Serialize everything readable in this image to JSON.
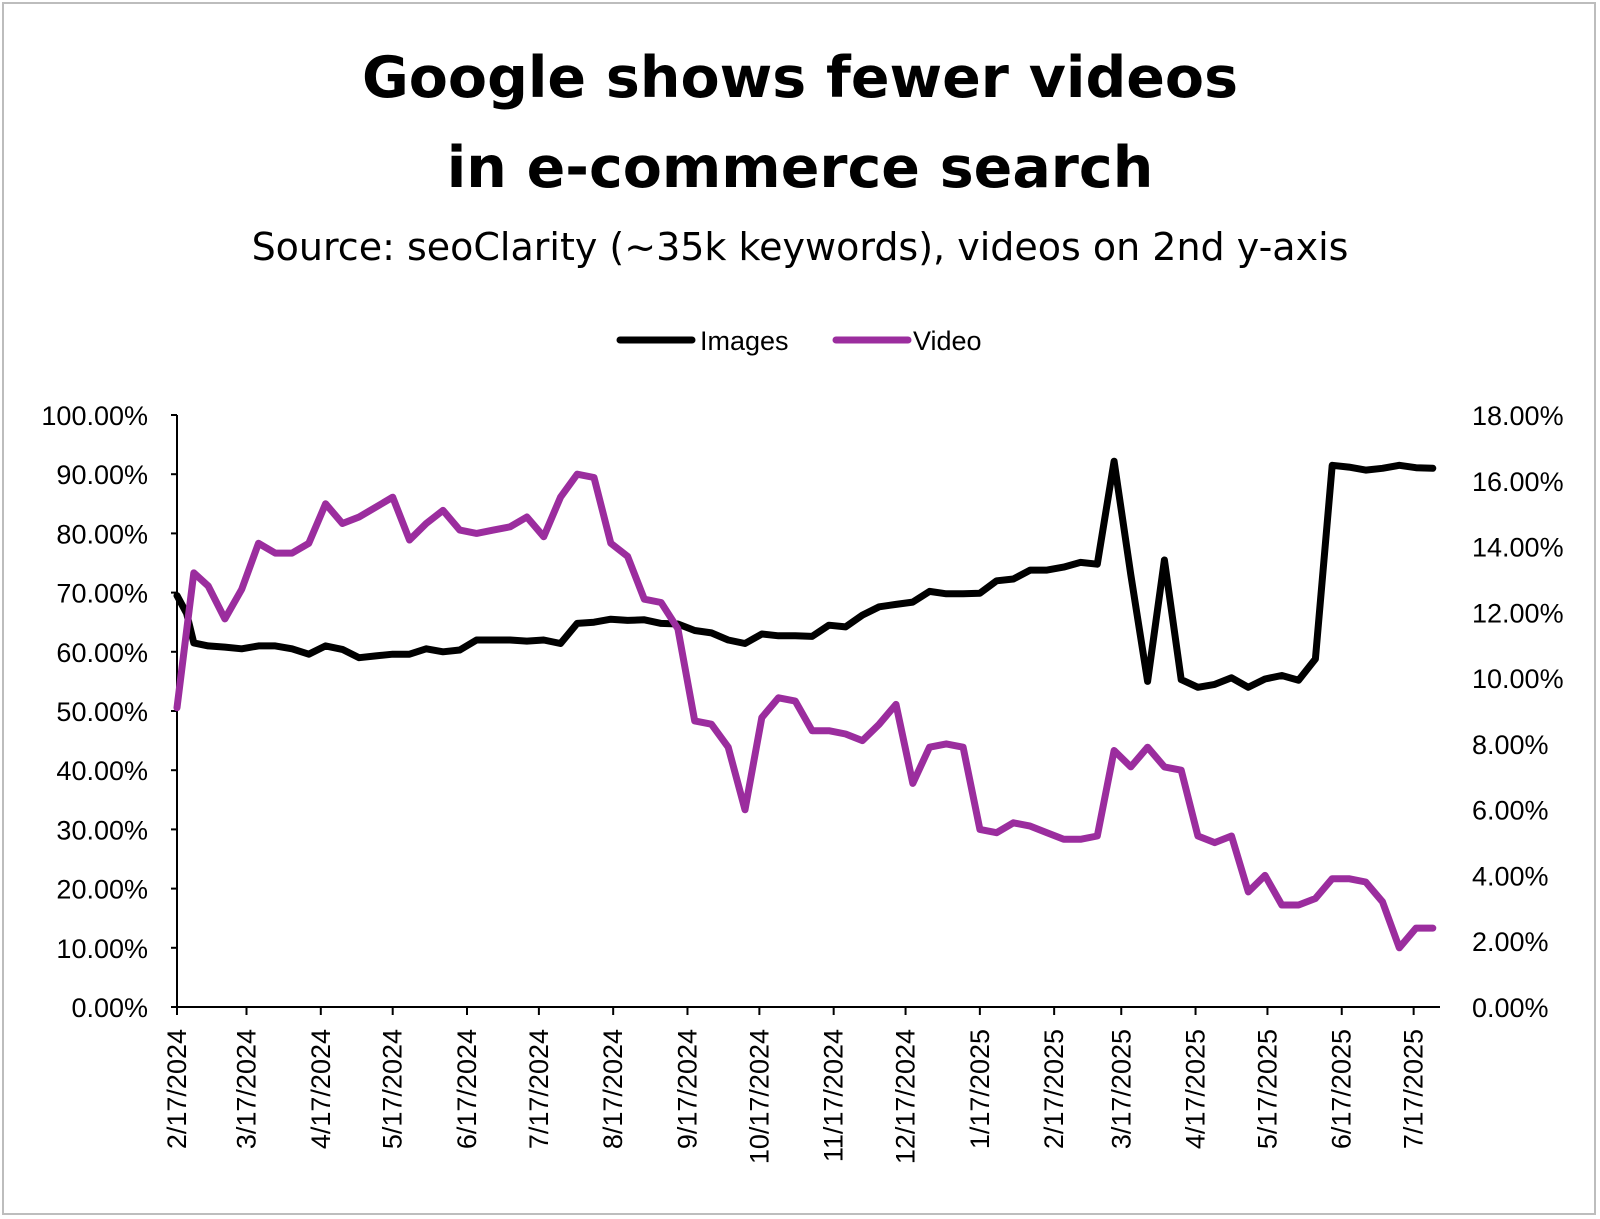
{
  "chart_data": {
    "type": "line",
    "title_line1": "Google shows fewer videos",
    "title_line2": "in e-commerce search",
    "subtitle": "Source: seoClarity (~35k keywords), videos on 2nd y-axis",
    "xlabel": "",
    "ylabel": "",
    "ylim": [
      0,
      1.0
    ],
    "y2lim": [
      0,
      0.18
    ],
    "y_ticks": [
      "0.00%",
      "10.00%",
      "20.00%",
      "30.00%",
      "40.00%",
      "50.00%",
      "60.00%",
      "70.00%",
      "80.00%",
      "90.00%",
      "100.00%"
    ],
    "y2_ticks": [
      "0.00%",
      "2.00%",
      "4.00%",
      "6.00%",
      "8.00%",
      "10.00%",
      "12.00%",
      "14.00%",
      "16.00%",
      "18.00%"
    ],
    "x_ticks": [
      "2/17/2024",
      "3/17/2024",
      "4/17/2024",
      "5/17/2024",
      "6/17/2024",
      "7/17/2024",
      "8/17/2024",
      "9/17/2024",
      "10/17/2024",
      "11/17/2024",
      "12/17/2024",
      "1/17/2025",
      "2/17/2025",
      "3/17/2025",
      "4/17/2025",
      "5/17/2025",
      "6/17/2025",
      "7/17/2025"
    ],
    "x_range": [
      "2024-02-17",
      "2025-07-28"
    ],
    "legend_position": "top-center",
    "grid": false,
    "series": [
      {
        "name": "Images",
        "axis": "left",
        "color": "#000000",
        "points": [
          [
            "2024-02-17",
            0.695
          ],
          [
            "2024-02-21",
            0.665
          ],
          [
            "2024-02-24",
            0.615
          ],
          [
            "2024-03-01",
            0.61
          ],
          [
            "2024-03-08",
            0.608
          ],
          [
            "2024-03-15",
            0.605
          ],
          [
            "2024-03-22",
            0.61
          ],
          [
            "2024-03-29",
            0.61
          ],
          [
            "2024-04-05",
            0.605
          ],
          [
            "2024-04-12",
            0.596
          ],
          [
            "2024-04-19",
            0.61
          ],
          [
            "2024-04-26",
            0.604
          ],
          [
            "2024-05-03",
            0.59
          ],
          [
            "2024-05-10",
            0.593
          ],
          [
            "2024-05-17",
            0.596
          ],
          [
            "2024-05-24",
            0.596
          ],
          [
            "2024-05-31",
            0.605
          ],
          [
            "2024-06-07",
            0.6
          ],
          [
            "2024-06-14",
            0.603
          ],
          [
            "2024-06-21",
            0.62
          ],
          [
            "2024-06-28",
            0.62
          ],
          [
            "2024-07-05",
            0.62
          ],
          [
            "2024-07-12",
            0.618
          ],
          [
            "2024-07-19",
            0.62
          ],
          [
            "2024-07-26",
            0.614
          ],
          [
            "2024-08-02",
            0.648
          ],
          [
            "2024-08-09",
            0.65
          ],
          [
            "2024-08-16",
            0.655
          ],
          [
            "2024-08-23",
            0.653
          ],
          [
            "2024-08-30",
            0.654
          ],
          [
            "2024-09-06",
            0.648
          ],
          [
            "2024-09-13",
            0.647
          ],
          [
            "2024-09-20",
            0.636
          ],
          [
            "2024-09-27",
            0.632
          ],
          [
            "2024-10-04",
            0.62
          ],
          [
            "2024-10-11",
            0.614
          ],
          [
            "2024-10-18",
            0.63
          ],
          [
            "2024-10-25",
            0.627
          ],
          [
            "2024-11-01",
            0.627
          ],
          [
            "2024-11-08",
            0.626
          ],
          [
            "2024-11-15",
            0.645
          ],
          [
            "2024-11-22",
            0.642
          ],
          [
            "2024-11-29",
            0.662
          ],
          [
            "2024-12-06",
            0.676
          ],
          [
            "2024-12-13",
            0.68
          ],
          [
            "2024-12-20",
            0.684
          ],
          [
            "2024-12-27",
            0.702
          ],
          [
            "2025-01-03",
            0.698
          ],
          [
            "2025-01-10",
            0.698
          ],
          [
            "2025-01-17",
            0.699
          ],
          [
            "2025-01-24",
            0.72
          ],
          [
            "2025-01-31",
            0.723
          ],
          [
            "2025-02-07",
            0.738
          ],
          [
            "2025-02-14",
            0.738
          ],
          [
            "2025-02-21",
            0.743
          ],
          [
            "2025-02-28",
            0.751
          ],
          [
            "2025-03-07",
            0.748
          ],
          [
            "2025-03-14",
            0.922
          ],
          [
            "2025-03-21",
            0.73
          ],
          [
            "2025-03-28",
            0.55
          ],
          [
            "2025-04-04",
            0.755
          ],
          [
            "2025-04-11",
            0.553
          ],
          [
            "2025-04-18",
            0.54
          ],
          [
            "2025-04-25",
            0.545
          ],
          [
            "2025-05-02",
            0.556
          ],
          [
            "2025-05-09",
            0.54
          ],
          [
            "2025-05-16",
            0.554
          ],
          [
            "2025-05-23",
            0.56
          ],
          [
            "2025-05-30",
            0.552
          ],
          [
            "2025-06-06",
            0.588
          ],
          [
            "2025-06-13",
            0.915
          ],
          [
            "2025-06-20",
            0.912
          ],
          [
            "2025-06-27",
            0.907
          ],
          [
            "2025-07-04",
            0.91
          ],
          [
            "2025-07-11",
            0.915
          ],
          [
            "2025-07-18",
            0.911
          ],
          [
            "2025-07-25",
            0.91
          ]
        ]
      },
      {
        "name": "Video",
        "axis": "right",
        "color": "#9b2d9e",
        "points": [
          [
            "2024-02-17",
            0.091
          ],
          [
            "2024-02-24",
            0.132
          ],
          [
            "2024-03-01",
            0.128
          ],
          [
            "2024-03-08",
            0.118
          ],
          [
            "2024-03-15",
            0.127
          ],
          [
            "2024-03-22",
            0.141
          ],
          [
            "2024-03-29",
            0.138
          ],
          [
            "2024-04-05",
            0.138
          ],
          [
            "2024-04-12",
            0.141
          ],
          [
            "2024-04-19",
            0.153
          ],
          [
            "2024-04-26",
            0.147
          ],
          [
            "2024-05-03",
            0.149
          ],
          [
            "2024-05-10",
            0.152
          ],
          [
            "2024-05-17",
            0.155
          ],
          [
            "2024-05-24",
            0.142
          ],
          [
            "2024-05-31",
            0.147
          ],
          [
            "2024-06-07",
            0.151
          ],
          [
            "2024-06-14",
            0.145
          ],
          [
            "2024-06-21",
            0.144
          ],
          [
            "2024-06-28",
            0.145
          ],
          [
            "2024-07-05",
            0.146
          ],
          [
            "2024-07-12",
            0.149
          ],
          [
            "2024-07-19",
            0.143
          ],
          [
            "2024-07-26",
            0.155
          ],
          [
            "2024-08-02",
            0.162
          ],
          [
            "2024-08-09",
            0.161
          ],
          [
            "2024-08-16",
            0.141
          ],
          [
            "2024-08-23",
            0.137
          ],
          [
            "2024-08-30",
            0.124
          ],
          [
            "2024-09-06",
            0.123
          ],
          [
            "2024-09-13",
            0.115
          ],
          [
            "2024-09-20",
            0.087
          ],
          [
            "2024-09-27",
            0.086
          ],
          [
            "2024-10-04",
            0.079
          ],
          [
            "2024-10-11",
            0.06
          ],
          [
            "2024-10-18",
            0.088
          ],
          [
            "2024-10-25",
            0.094
          ],
          [
            "2024-11-01",
            0.093
          ],
          [
            "2024-11-08",
            0.084
          ],
          [
            "2024-11-15",
            0.084
          ],
          [
            "2024-11-22",
            0.083
          ],
          [
            "2024-11-29",
            0.081
          ],
          [
            "2024-12-06",
            0.086
          ],
          [
            "2024-12-13",
            0.092
          ],
          [
            "2024-12-20",
            0.068
          ],
          [
            "2024-12-27",
            0.079
          ],
          [
            "2025-01-03",
            0.08
          ],
          [
            "2025-01-10",
            0.079
          ],
          [
            "2025-01-17",
            0.054
          ],
          [
            "2025-01-24",
            0.053
          ],
          [
            "2025-01-31",
            0.056
          ],
          [
            "2025-02-07",
            0.055
          ],
          [
            "2025-02-14",
            0.053
          ],
          [
            "2025-02-21",
            0.051
          ],
          [
            "2025-02-28",
            0.051
          ],
          [
            "2025-03-07",
            0.052
          ],
          [
            "2025-03-14",
            0.078
          ],
          [
            "2025-03-21",
            0.073
          ],
          [
            "2025-03-28",
            0.079
          ],
          [
            "2025-04-04",
            0.073
          ],
          [
            "2025-04-11",
            0.072
          ],
          [
            "2025-04-18",
            0.052
          ],
          [
            "2025-04-25",
            0.05
          ],
          [
            "2025-05-02",
            0.052
          ],
          [
            "2025-05-09",
            0.035
          ],
          [
            "2025-05-16",
            0.04
          ],
          [
            "2025-05-23",
            0.031
          ],
          [
            "2025-05-30",
            0.031
          ],
          [
            "2025-06-06",
            0.033
          ],
          [
            "2025-06-13",
            0.039
          ],
          [
            "2025-06-20",
            0.039
          ],
          [
            "2025-06-27",
            0.038
          ],
          [
            "2025-07-04",
            0.032
          ],
          [
            "2025-07-11",
            0.018
          ],
          [
            "2025-07-18",
            0.024
          ],
          [
            "2025-07-25",
            0.024
          ]
        ]
      }
    ]
  }
}
